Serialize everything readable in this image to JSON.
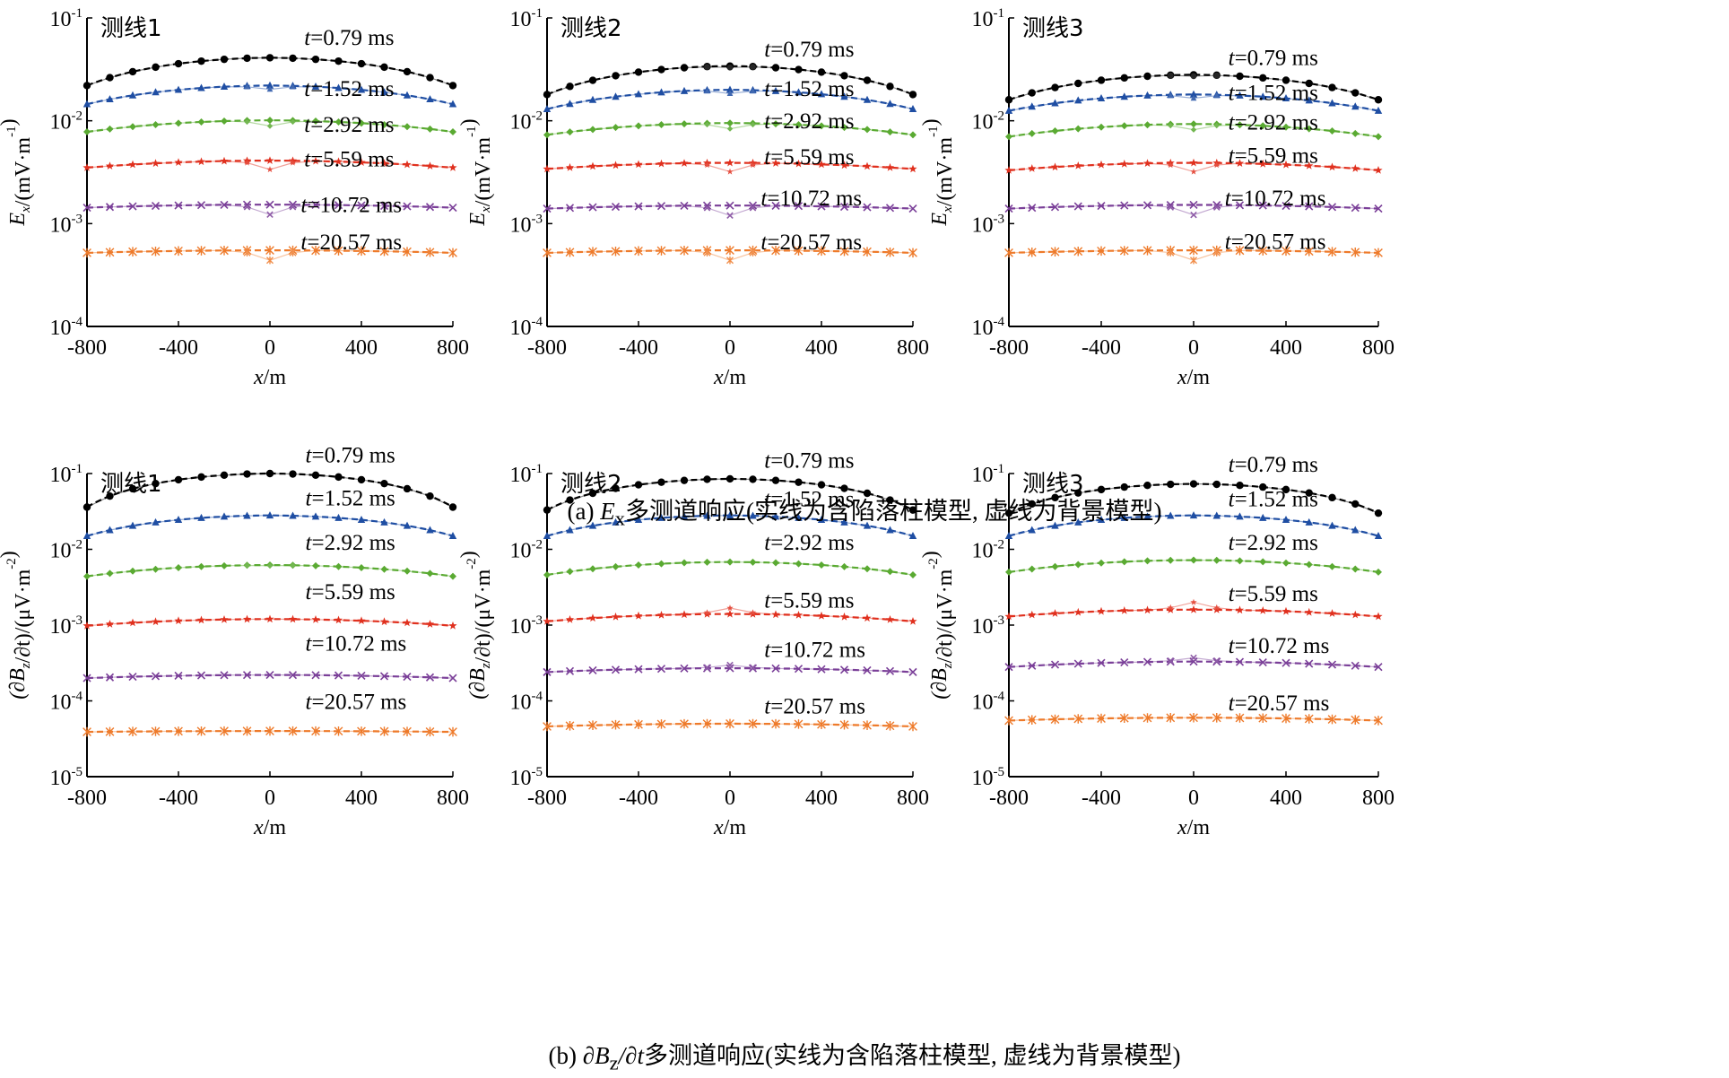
{
  "captions": {
    "a": {
      "label": "(a)",
      "var": "E",
      "sub": "x",
      "text": "多测道响应(实线为含陷落柱模型, 虚线为背景模型)"
    },
    "b": {
      "label": "(b)",
      "var": "∂B",
      "sub": "z",
      "tail": "/∂t",
      "text": "多测道响应(实线为含陷落柱模型, 虚线为背景模型)"
    }
  },
  "colors": {
    "0.79": "#000000",
    "1.52": "#1f4ea3",
    "2.92": "#5aaa32",
    "5.59": "#e0301e",
    "10.72": "#7a3f98",
    "20.57": "#ee7a2a"
  },
  "rows": [
    {
      "ylabel": {
        "pre": "E",
        "sub": "x",
        "unit": "/(mV·m",
        "sup": "-1",
        "close": ")"
      },
      "yexp": [
        -1,
        -2,
        -3,
        -4
      ],
      "ylim_exp": [
        -4,
        -1
      ]
    },
    {
      "ylabel": {
        "pre": "(∂B",
        "sub": "z",
        "unit": "/∂t)/(μV·m",
        "sup": "-2",
        "close": ")"
      },
      "yexp": [
        -1,
        -2,
        -3,
        -4,
        -5
      ],
      "ylim_exp": [
        -5,
        -1
      ]
    }
  ],
  "xlabel": "x/m",
  "xticks": [
    -800,
    -400,
    0,
    400,
    800
  ],
  "chart_data": [
    {
      "type": "line",
      "title": "测线1",
      "xlabel": "x/m",
      "ylabel": "Ex/(mV·m-1)",
      "xlim": [
        -800,
        800
      ],
      "ylim": [
        0.0001,
        0.1
      ],
      "yscale": "log",
      "times": [
        "0.79",
        "1.52",
        "2.92",
        "5.59",
        "10.72",
        "20.57"
      ],
      "background_peak": [
        0.041,
        0.022,
        0.0101,
        0.0041,
        0.00153,
        0.00055
      ],
      "background_edge": [
        0.022,
        0.0145,
        0.0078,
        0.0035,
        0.00143,
        0.00052
      ],
      "anomaly_dip": [
        0.0,
        0.08,
        0.12,
        0.18,
        0.2,
        0.2
      ],
      "labels": [
        {
          "t": "0.79",
          "x": 150,
          "y": 0.055
        },
        {
          "t": "1.52",
          "x": 150,
          "y": 0.0175
        },
        {
          "t": "2.92",
          "x": 150,
          "y": 0.0078
        },
        {
          "t": "5.59",
          "x": 150,
          "y": 0.0036
        },
        {
          "t": "10.72",
          "x": 135,
          "y": 0.0013
        },
        {
          "t": "20.57",
          "x": 135,
          "y": 0.00056
        }
      ]
    },
    {
      "type": "line",
      "title": "测线2",
      "xlabel": "x/m",
      "ylabel": "Ex/(mV·m-1)",
      "xlim": [
        -800,
        800
      ],
      "ylim": [
        0.0001,
        0.1
      ],
      "yscale": "log",
      "times": [
        "0.79",
        "1.52",
        "2.92",
        "5.59",
        "10.72",
        "20.57"
      ],
      "background_peak": [
        0.034,
        0.02,
        0.0095,
        0.0039,
        0.0015,
        0.00055
      ],
      "background_edge": [
        0.018,
        0.013,
        0.0073,
        0.0034,
        0.0014,
        0.00052
      ],
      "anomaly_dip": [
        0.03,
        0.08,
        0.12,
        0.18,
        0.2,
        0.2
      ],
      "labels": [
        {
          "t": "0.79",
          "x": 150,
          "y": 0.042
        },
        {
          "t": "1.52",
          "x": 150,
          "y": 0.0175
        },
        {
          "t": "2.92",
          "x": 150,
          "y": 0.0085
        },
        {
          "t": "5.59",
          "x": 150,
          "y": 0.0038
        },
        {
          "t": "10.72",
          "x": 135,
          "y": 0.0015
        },
        {
          "t": "20.57",
          "x": 135,
          "y": 0.00056
        }
      ]
    },
    {
      "type": "line",
      "title": "测线3",
      "xlabel": "x/m",
      "ylabel": "Ex/(mV·m-1)",
      "xlim": [
        -800,
        800
      ],
      "ylim": [
        0.0001,
        0.1
      ],
      "yscale": "log",
      "times": [
        "0.79",
        "1.52",
        "2.92",
        "5.59",
        "10.72",
        "20.57"
      ],
      "background_peak": [
        0.028,
        0.018,
        0.0093,
        0.0039,
        0.00152,
        0.00055
      ],
      "background_edge": [
        0.016,
        0.0125,
        0.007,
        0.0033,
        0.0014,
        0.00052
      ],
      "anomaly_dip": [
        0.03,
        0.08,
        0.12,
        0.18,
        0.2,
        0.2
      ],
      "labels": [
        {
          "t": "0.79",
          "x": 150,
          "y": 0.035
        },
        {
          "t": "1.52",
          "x": 150,
          "y": 0.016
        },
        {
          "t": "2.92",
          "x": 150,
          "y": 0.0082
        },
        {
          "t": "5.59",
          "x": 150,
          "y": 0.0039
        },
        {
          "t": "10.72",
          "x": 135,
          "y": 0.0015
        },
        {
          "t": "20.57",
          "x": 135,
          "y": 0.00057
        }
      ]
    },
    {
      "type": "line",
      "title": "测线1",
      "xlabel": "x/m",
      "ylabel": "(∂Bz/∂t)/(μV·m-2)",
      "xlim": [
        -800,
        800
      ],
      "ylim": [
        1e-05,
        0.1
      ],
      "yscale": "log",
      "times": [
        "0.79",
        "1.52",
        "2.92",
        "5.59",
        "10.72",
        "20.57"
      ],
      "background_peak": [
        0.1,
        0.028,
        0.0062,
        0.0012,
        0.00022,
        4e-05
      ],
      "background_edge": [
        0.036,
        0.015,
        0.0044,
        0.00098,
        0.0002,
        3.9e-05
      ],
      "anomaly_dip": [
        0.0,
        0.0,
        0.02,
        0.0,
        0.0,
        0.0
      ],
      "labels": [
        {
          "t": "0.79",
          "x": 155,
          "y": 0.14
        },
        {
          "t": "1.52",
          "x": 155,
          "y": 0.038
        },
        {
          "t": "2.92",
          "x": 155,
          "y": 0.0098
        },
        {
          "t": "5.59",
          "x": 155,
          "y": 0.0022
        },
        {
          "t": "10.72",
          "x": 155,
          "y": 0.00046
        },
        {
          "t": "20.57",
          "x": 155,
          "y": 7.8e-05
        }
      ]
    },
    {
      "type": "line",
      "title": "测线2",
      "xlabel": "x/m",
      "ylabel": "(∂Bz/∂t)/(μV·m-2)",
      "xlim": [
        -800,
        800
      ],
      "ylim": [
        1e-05,
        0.1
      ],
      "yscale": "log",
      "times": [
        "0.79",
        "1.52",
        "2.92",
        "5.59",
        "10.72",
        "20.57"
      ],
      "background_peak": [
        0.085,
        0.028,
        0.0068,
        0.0014,
        0.00027,
        5e-05
      ],
      "background_edge": [
        0.033,
        0.015,
        0.0046,
        0.00112,
        0.00024,
        4.6e-05
      ],
      "anomaly_dip": [
        0.0,
        0.0,
        0.0,
        -0.2,
        -0.1,
        0.0
      ],
      "labels": [
        {
          "t": "0.79",
          "x": 150,
          "y": 0.12
        },
        {
          "t": "1.52",
          "x": 150,
          "y": 0.037
        },
        {
          "t": "2.92",
          "x": 150,
          "y": 0.0098
        },
        {
          "t": "5.59",
          "x": 150,
          "y": 0.0017
        },
        {
          "t": "10.72",
          "x": 150,
          "y": 0.00038
        },
        {
          "t": "20.57",
          "x": 150,
          "y": 6.8e-05
        }
      ]
    },
    {
      "type": "line",
      "title": "测线3",
      "xlabel": "x/m",
      "ylabel": "(∂Bz/∂t)/(μV·m-2)",
      "xlim": [
        -800,
        800
      ],
      "ylim": [
        1e-05,
        0.1
      ],
      "yscale": "log",
      "times": [
        "0.79",
        "1.52",
        "2.92",
        "5.59",
        "10.72",
        "20.57"
      ],
      "background_peak": [
        0.073,
        0.028,
        0.0072,
        0.0016,
        0.00033,
        6e-05
      ],
      "background_edge": [
        0.03,
        0.015,
        0.005,
        0.0013,
        0.00028,
        5.5e-05
      ],
      "anomaly_dip": [
        0.0,
        0.0,
        0.0,
        -0.25,
        -0.12,
        0.0
      ],
      "labels": [
        {
          "t": "0.79",
          "x": 150,
          "y": 0.105
        },
        {
          "t": "1.52",
          "x": 150,
          "y": 0.037
        },
        {
          "t": "2.92",
          "x": 150,
          "y": 0.0098
        },
        {
          "t": "5.59",
          "x": 150,
          "y": 0.0021
        },
        {
          "t": "10.72",
          "x": 150,
          "y": 0.00043
        },
        {
          "t": "20.57",
          "x": 150,
          "y": 7.5e-05
        }
      ]
    }
  ]
}
